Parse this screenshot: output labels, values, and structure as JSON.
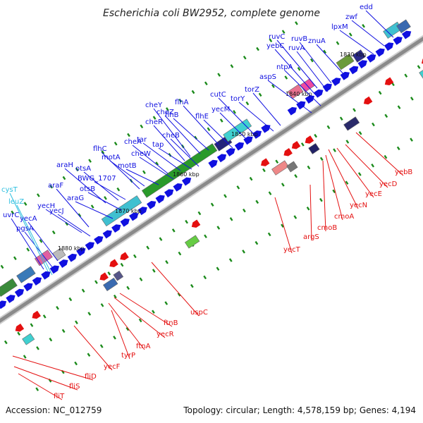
{
  "title": "Escherichia coli BW2952, complete genome",
  "footer": {
    "accession": "Accession: NC_012759",
    "summary": "Topology: circular; Length: 4,578,159 bp; Genes: 4,194"
  },
  "colors": {
    "forward_gene": "#1010e0",
    "reverse_gene": "#e41010",
    "highlight_gene": "#30c0e0",
    "backbone": "#8a8a8a",
    "tick": "#1a8a1a"
  },
  "kbp_markers": [
    "1830 kbp",
    "1840 kbp",
    "1850 kbp",
    "1860 kbp",
    "1870 kbp",
    "1880 kbp"
  ],
  "forward_labels": [
    "edd",
    "zwf",
    "lpxM",
    "ruvC",
    "yebC",
    "ruvB",
    "ruvA",
    "znuA",
    "ntpA",
    "aspS",
    "torZ",
    "torY",
    "cutC",
    "yecM",
    "flhA",
    "flhB",
    "flhE",
    "cheY",
    "cheZ",
    "cheR",
    "cheB",
    "cheA",
    "tar",
    "tap",
    "cheW",
    "flhC",
    "motA",
    "motB",
    "araH",
    "otsA",
    "BWG_1707",
    "otsB",
    "araF",
    "araG",
    "yecH",
    "yecJ",
    "yecA",
    "uvrC",
    "pgsA"
  ],
  "highlight_labels": [
    "cysT",
    "leuZ"
  ],
  "reverse_labels": [
    "yebB",
    "yecD",
    "yecE",
    "yecN",
    "cmoA",
    "cmoB",
    "argS",
    "yecT",
    "uspC",
    "ftnB",
    "yecR",
    "ftnA",
    "tyrP",
    "yecF",
    "fliD",
    "fliS",
    "fliT"
  ]
}
